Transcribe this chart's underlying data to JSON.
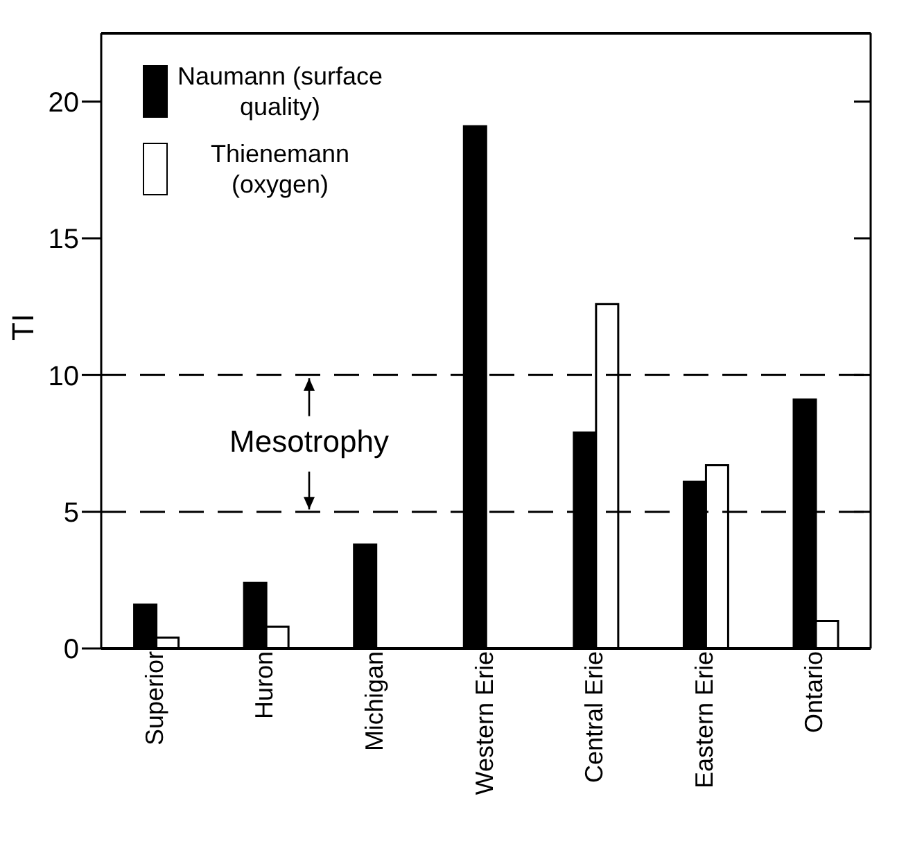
{
  "chart_data": {
    "type": "bar",
    "ylabel": "TI",
    "categories": [
      "Superior",
      "Huron",
      "Michigan",
      "Western Erie",
      "Central Erie",
      "Eastern Erie",
      "Ontario"
    ],
    "series": [
      {
        "name": "Naumann (surface quality)",
        "color": "#000000",
        "values": [
          1.6,
          2.4,
          3.8,
          19.1,
          7.9,
          6.1,
          9.1
        ]
      },
      {
        "name": "Thienemann (oxygen)",
        "color": "#ffffff",
        "values": [
          0.4,
          0.8,
          null,
          null,
          12.6,
          6.7,
          1.0
        ]
      }
    ],
    "ylim": [
      0,
      22.5
    ],
    "yticks": [
      0,
      5,
      10,
      15,
      20
    ],
    "grid": false,
    "legend": "top left",
    "ref_lines": [
      {
        "axis": "y",
        "value": 10,
        "line_style": "dashed"
      },
      {
        "axis": "y",
        "value": 5,
        "line_style": "dashed"
      }
    ],
    "annotations": [
      {
        "text": "Mesotrophy",
        "y": 10
      }
    ]
  }
}
